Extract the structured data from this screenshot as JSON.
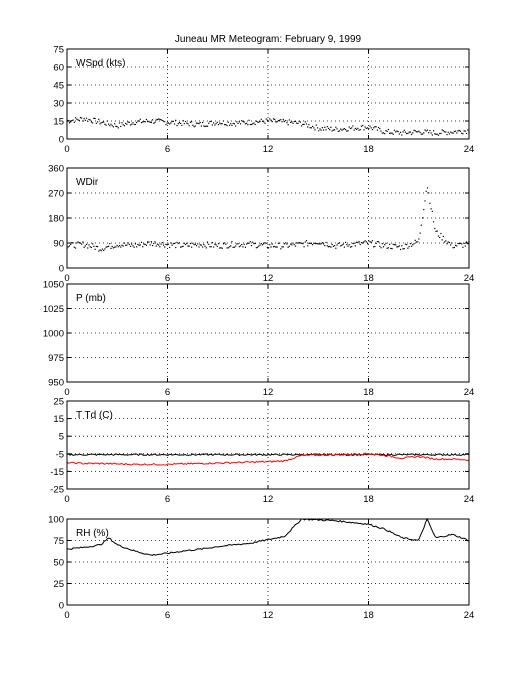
{
  "title": "Juneau MR Meteogram:  February  9, 1999",
  "chart_data": [
    {
      "type": "scatter",
      "label": "WSpd (kts)",
      "xlim": [
        0,
        24
      ],
      "ylim": [
        0,
        75
      ],
      "xticks": [
        0,
        6,
        12,
        18,
        24
      ],
      "yticks": [
        0,
        15,
        30,
        45,
        60,
        75
      ],
      "grid": true,
      "series": [
        {
          "color": "#000000",
          "style": "dots",
          "x": [
            0,
            1,
            2,
            3,
            4,
            5,
            6,
            7,
            8,
            9,
            10,
            11,
            12,
            13,
            14,
            15,
            16,
            17,
            18,
            19,
            20,
            21,
            22,
            23,
            24
          ],
          "y": [
            15,
            17,
            14,
            11,
            14,
            15,
            14,
            13,
            12,
            14,
            13,
            14,
            15,
            14,
            13,
            9,
            8,
            9,
            10,
            6,
            5,
            6,
            5,
            6,
            7
          ]
        }
      ]
    },
    {
      "type": "scatter",
      "label": "WDir",
      "xlim": [
        0,
        24
      ],
      "ylim": [
        0,
        360
      ],
      "xticks": [
        0,
        6,
        12,
        18,
        24
      ],
      "yticks": [
        0,
        90,
        180,
        270,
        360
      ],
      "grid": true,
      "series": [
        {
          "color": "#000000",
          "style": "dots",
          "x": [
            0,
            1,
            2,
            3,
            4,
            5,
            6,
            7,
            8,
            9,
            10,
            11,
            12,
            13,
            14,
            15,
            16,
            17,
            18,
            19,
            20,
            21,
            21.5,
            22,
            23,
            24
          ],
          "y": [
            80,
            85,
            70,
            85,
            80,
            90,
            85,
            80,
            85,
            80,
            85,
            85,
            80,
            80,
            85,
            95,
            80,
            85,
            90,
            80,
            75,
            95,
            300,
            130,
            80,
            85
          ]
        }
      ]
    },
    {
      "type": "line",
      "label": "P (mb)",
      "xlim": [
        0,
        24
      ],
      "ylim": [
        950,
        1050
      ],
      "xticks": [
        0,
        6,
        12,
        18,
        24
      ],
      "yticks": [
        950,
        975,
        1000,
        1025,
        1050
      ],
      "grid": true,
      "series": []
    },
    {
      "type": "line",
      "label": "T Td (C)",
      "xlim": [
        0,
        24
      ],
      "ylim": [
        -25,
        25
      ],
      "xticks": [
        0,
        6,
        12,
        18,
        24
      ],
      "yticks": [
        -25,
        -15,
        -5,
        5,
        15,
        25
      ],
      "grid": true,
      "series": [
        {
          "color": "#000000",
          "x": [
            0,
            2,
            4,
            6,
            8,
            10,
            12,
            14,
            16,
            18,
            20,
            22,
            24
          ],
          "y": [
            -5.5,
            -5.5,
            -5.5,
            -5.5,
            -5.5,
            -5.5,
            -5.5,
            -5.5,
            -5.5,
            -5.5,
            -5.5,
            -5.5,
            -5.5
          ]
        },
        {
          "color": "#ff0000",
          "x": [
            0,
            1,
            2,
            4,
            6,
            8,
            10,
            12,
            13,
            14,
            16,
            18,
            19,
            20,
            21,
            22,
            23,
            24
          ],
          "y": [
            -10,
            -10.5,
            -10.5,
            -11,
            -11,
            -10.5,
            -10,
            -9.5,
            -9,
            -6,
            -5.5,
            -5,
            -6,
            -7.5,
            -6.5,
            -8,
            -8,
            -8.5
          ]
        }
      ]
    },
    {
      "type": "line",
      "label": "RH (%)",
      "xlim": [
        0,
        24
      ],
      "ylim": [
        0,
        100
      ],
      "xticks": [
        0,
        6,
        12,
        18,
        24
      ],
      "yticks": [
        0,
        25,
        50,
        75,
        100
      ],
      "grid": true,
      "series": [
        {
          "color": "#000000",
          "x": [
            0,
            1,
            2,
            2.5,
            3,
            4,
            5,
            6,
            7,
            8,
            9,
            10,
            11,
            12,
            13,
            13.5,
            14,
            15,
            16,
            17,
            18,
            19,
            20,
            21,
            21.5,
            22,
            23,
            24
          ],
          "y": [
            65,
            67,
            70,
            78,
            70,
            63,
            58,
            60,
            63,
            65,
            68,
            70,
            72,
            76,
            80,
            90,
            100,
            99,
            98,
            96,
            94,
            88,
            78,
            75,
            100,
            78,
            82,
            75
          ]
        }
      ]
    }
  ]
}
